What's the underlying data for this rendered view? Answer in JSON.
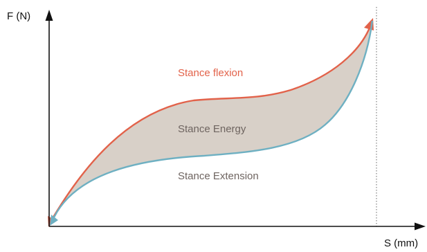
{
  "diagram": {
    "y_axis_label": "F (N)",
    "x_axis_label": "S (mm)",
    "flexion_label": "Stance flexion",
    "energy_label": "Stance Energy",
    "extension_label": "Stance Extension"
  },
  "colors": {
    "flexion_curve": "#e2624a",
    "extension_curve": "#6eb0c2",
    "energy_fill": "#d8d0c8",
    "energy_text": "#6e6460",
    "axis": "#111111"
  }
}
